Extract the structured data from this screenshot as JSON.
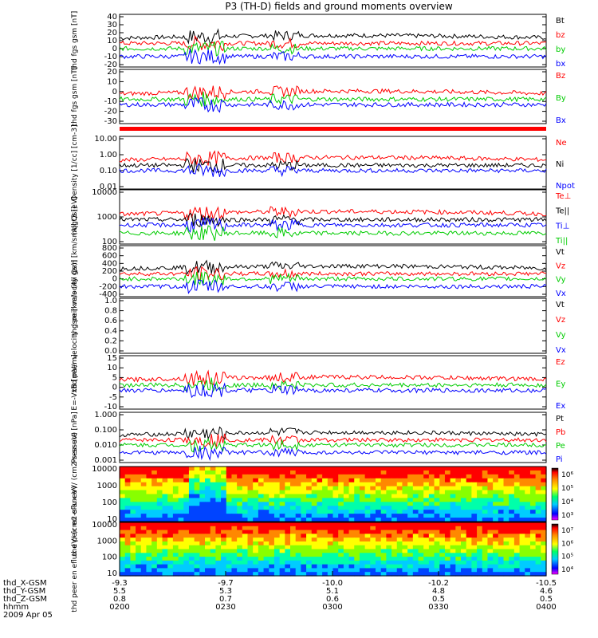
{
  "title": "P3 (TH-D) fields and ground moments overview",
  "chart_data": [
    {
      "type": "line",
      "ylabel": "thd fgs gsm [nT]",
      "yticks": [
        "40",
        "30",
        "20",
        "10",
        "0",
        "-10",
        "-20"
      ],
      "ylim": [
        -20,
        40
      ],
      "legend": [
        "Bt",
        "bz",
        "by",
        "bx"
      ],
      "colors": [
        "#000000",
        "#ff0000",
        "#00cc00",
        "#0000ff"
      ]
    },
    {
      "type": "line",
      "ylabel": "thd fgs gsm [nT]",
      "yticks": [
        "20",
        "10",
        "0",
        "-10",
        "-20",
        "-30"
      ],
      "ylim": [
        -35,
        20
      ],
      "legend": [
        "Bz",
        "By",
        "Bx"
      ],
      "colors": [
        "#ff0000",
        "#00cc00",
        "#0000ff"
      ]
    },
    {
      "type": "line",
      "ylabel": "Density [1/cc] [cm-3]",
      "yticks": [
        "10.00",
        "1.00",
        "0.10",
        "0.01"
      ],
      "log": true,
      "legend": [
        "Ne",
        "Ni",
        "Npot"
      ],
      "colors": [
        "#ff0000",
        "#000000",
        "#0000ff"
      ]
    },
    {
      "type": "line",
      "ylabel": "mqgt3 [eV]",
      "yticks": [
        "10000",
        "1000",
        "100"
      ],
      "log": true,
      "legend": [
        "Te⊥",
        "Te||",
        "Ti⊥",
        "Ti||"
      ],
      "colors": [
        "#ff0000",
        "#000000",
        "#0000ff",
        "#00cc00"
      ]
    },
    {
      "type": "line",
      "ylabel": "thd peir velocity gsm [km/s (All Qs)]",
      "yticks": [
        "800",
        "600",
        "400",
        "200",
        "0",
        "-200",
        "-400"
      ],
      "ylim": [
        -400,
        800
      ],
      "legend": [
        "Vt",
        "Vz",
        "Vy",
        "Vx"
      ],
      "colors": [
        "#000000",
        "#ff0000",
        "#00cc00",
        "#0000ff"
      ]
    },
    {
      "type": "line",
      "ylabel": "thd peer velocity gsm [km/s (All Qs)]",
      "yticks": [
        "1.0",
        "0.8",
        "0.6",
        "0.4",
        "0.2",
        "0.0"
      ],
      "ylim": [
        0,
        1
      ],
      "legend": [
        "Vt",
        "Vz",
        "Vy",
        "Vx"
      ],
      "colors": [
        "#000000",
        "#ff0000",
        "#00cc00",
        "#0000ff"
      ]
    },
    {
      "type": "line",
      "ylabel": "E=-VxB [mV/m]",
      "yticks": [
        "15",
        "10",
        "5",
        "0",
        "-5",
        "-10"
      ],
      "ylim": [
        -10,
        15
      ],
      "legend": [
        "Ez",
        "Ey",
        "Ex"
      ],
      "colors": [
        "#ff0000",
        "#00cc00",
        "#0000ff"
      ]
    },
    {
      "type": "line",
      "ylabel": "Pressure [nPa]",
      "yticks": [
        "1.000",
        "0.100",
        "0.010",
        "0.001"
      ],
      "log": true,
      "legend": [
        "Pt",
        "Pb",
        "Pe",
        "Pi"
      ],
      "colors": [
        "#000000",
        "#ff0000",
        "#00cc00",
        "#0000ff"
      ]
    },
    {
      "type": "heatmap",
      "ylabel": "thd peir en eflux eV/ (cm2-s-sr-eV)",
      "yticks": [
        "10000",
        "1000",
        "100",
        "10"
      ],
      "log": true,
      "colorbar": [
        "10⁶",
        "10⁵",
        "10⁴",
        "10³"
      ]
    },
    {
      "type": "heatmap",
      "ylabel": "thd peer en eflux eV/ (cm2-s-sr-eV)",
      "yticks": [
        "10000",
        "1000",
        "100",
        "10"
      ],
      "log": true,
      "colorbar": [
        "10⁷",
        "10⁶",
        "10⁵",
        "10⁴"
      ]
    }
  ],
  "footer": {
    "rows": [
      {
        "label": "thd_X-GSM",
        "values": [
          "-9.3",
          "-9.7",
          "-10.0",
          "-10.2",
          "-10.5"
        ]
      },
      {
        "label": "thd_Y-GSM",
        "values": [
          "5.5",
          "5.3",
          "5.1",
          "4.8",
          "4.6"
        ]
      },
      {
        "label": "thd_Z-GSM",
        "values": [
          "0.8",
          "0.7",
          "0.6",
          "0.5",
          "0.5"
        ]
      },
      {
        "label": "hhmm",
        "values": [
          "0200",
          "0230",
          "0300",
          "0330",
          "0400"
        ]
      }
    ],
    "date": "2009 Apr 05"
  }
}
